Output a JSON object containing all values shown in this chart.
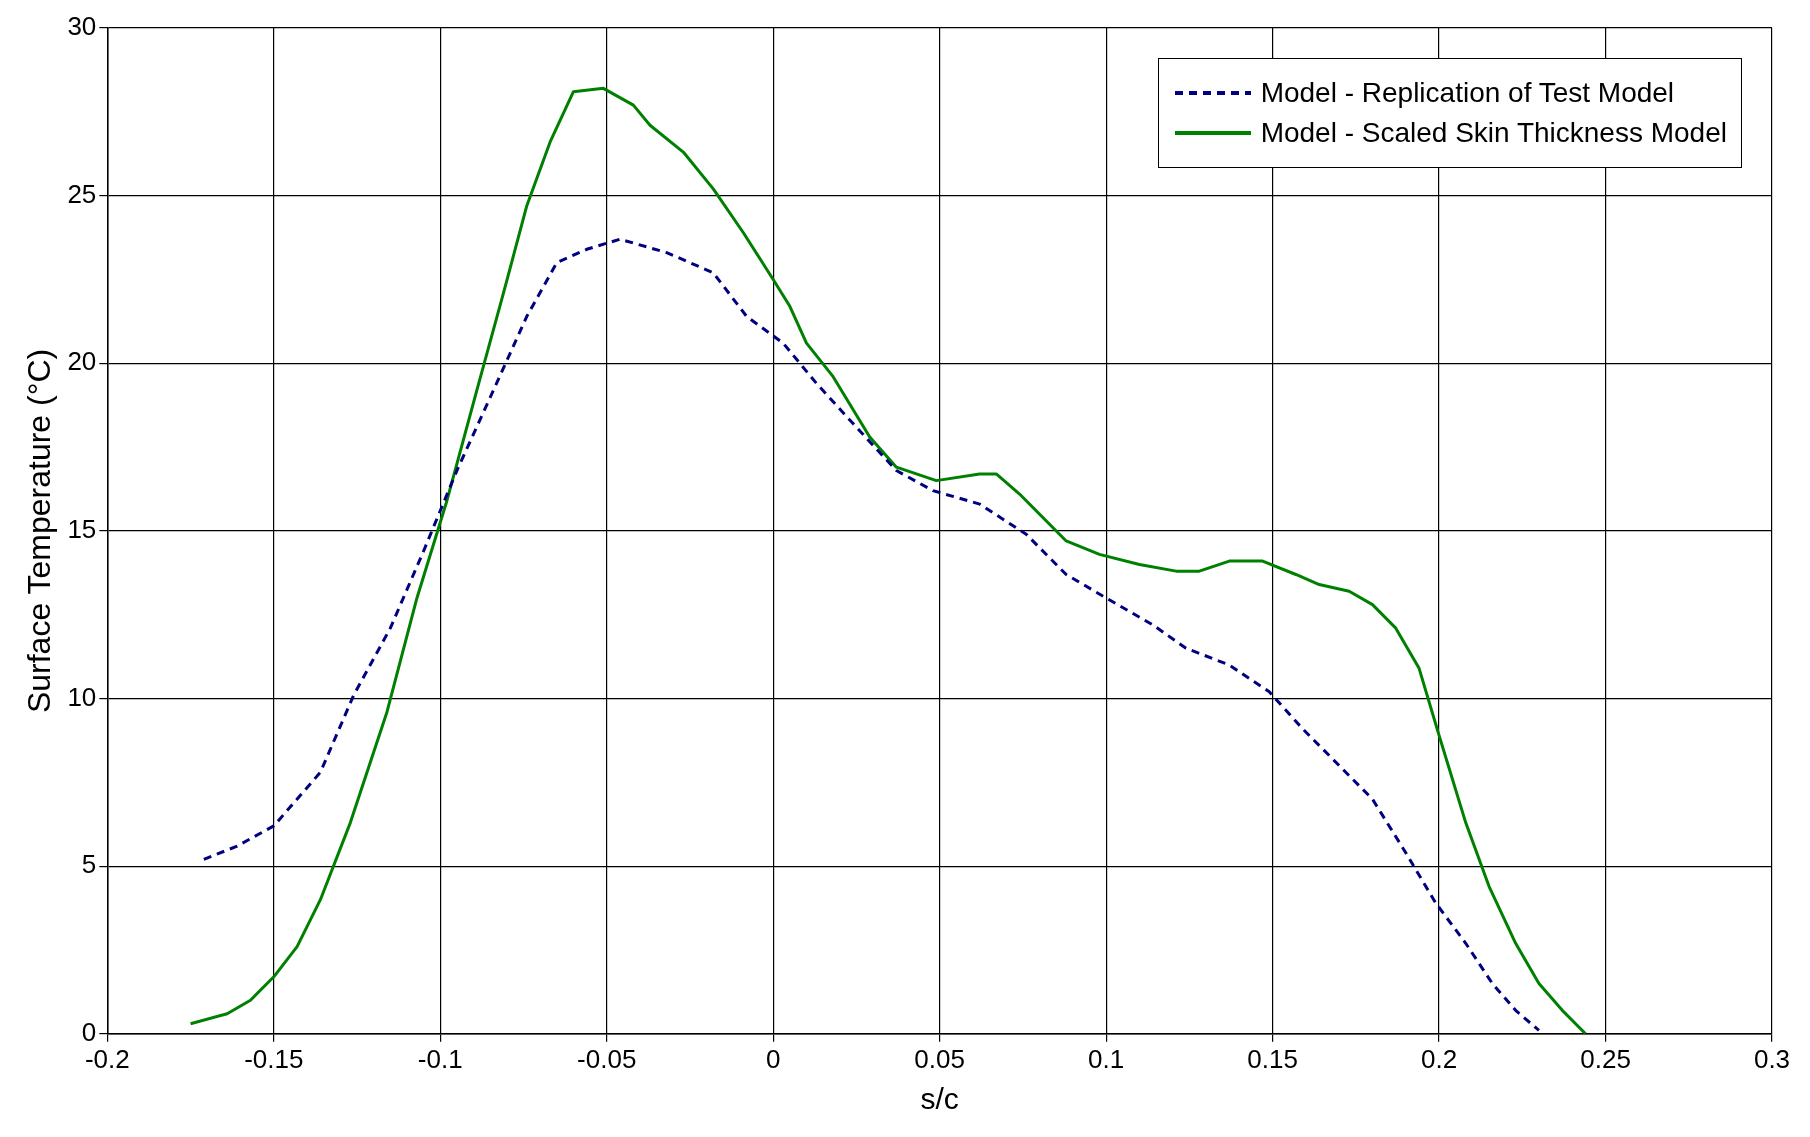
{
  "chart_data": {
    "type": "line",
    "xlabel": "s/c",
    "ylabel": "Surface Temperature (°C)",
    "xlim": [
      -0.2,
      0.3
    ],
    "xticks": [
      -0.2,
      -0.15,
      -0.1,
      -0.05,
      0,
      0.05,
      0.1,
      0.15,
      0.2,
      0.25,
      0.3
    ],
    "ylim": [
      0,
      30
    ],
    "yticks": [
      0,
      5,
      10,
      15,
      20,
      25,
      30
    ],
    "grid": true,
    "legend": "top right",
    "marker": "none",
    "series": [
      {
        "name": "Model - Replication of Test Model",
        "color": "#000080",
        "line_style": "dashed",
        "x": [
          -0.171,
          -0.161,
          -0.15,
          -0.136,
          -0.126,
          -0.115,
          -0.105,
          -0.095,
          -0.084,
          -0.074,
          -0.065,
          -0.056,
          -0.046,
          -0.032,
          -0.018,
          -0.008,
          0.003,
          0.013,
          0.024,
          0.037,
          0.048,
          0.062,
          0.076,
          0.088,
          0.1,
          0.114,
          0.124,
          0.137,
          0.149,
          0.159,
          0.17,
          0.18,
          0.19,
          0.199,
          0.208,
          0.216,
          0.223,
          0.23
        ],
        "values": [
          5.2,
          5.6,
          6.2,
          7.8,
          10.1,
          12.1,
          14.4,
          16.8,
          19.2,
          21.4,
          23.0,
          23.4,
          23.7,
          23.3,
          22.7,
          21.4,
          20.6,
          19.4,
          18.2,
          16.8,
          16.2,
          15.8,
          14.9,
          13.7,
          13.0,
          12.2,
          11.5,
          11.0,
          10.2,
          9.1,
          8.0,
          7.0,
          5.4,
          3.9,
          2.7,
          1.5,
          0.7,
          0.1
        ]
      },
      {
        "name": "Model - Scaled Skin Thickness Model",
        "color": "#008000",
        "line_style": "solid",
        "x": [
          -0.175,
          -0.164,
          -0.157,
          -0.15,
          -0.143,
          -0.136,
          -0.127,
          -0.116,
          -0.107,
          -0.098,
          -0.089,
          -0.081,
          -0.074,
          -0.067,
          -0.06,
          -0.051,
          -0.042,
          -0.037,
          -0.027,
          -0.018,
          -0.009,
          0.0,
          0.005,
          0.01,
          0.018,
          0.029,
          0.037,
          0.049,
          0.062,
          0.067,
          0.074,
          0.088,
          0.098,
          0.11,
          0.121,
          0.128,
          0.137,
          0.147,
          0.157,
          0.164,
          0.173,
          0.18,
          0.187,
          0.194,
          0.2,
          0.208,
          0.215,
          0.223,
          0.23,
          0.237,
          0.244
        ],
        "values": [
          0.3,
          0.6,
          1.0,
          1.7,
          2.6,
          4.0,
          6.3,
          9.6,
          13.0,
          15.9,
          19.2,
          22.1,
          24.7,
          26.6,
          28.1,
          28.2,
          27.7,
          27.1,
          26.3,
          25.2,
          23.9,
          22.5,
          21.7,
          20.6,
          19.6,
          17.8,
          16.9,
          16.5,
          16.7,
          16.7,
          16.1,
          14.7,
          14.3,
          14.0,
          13.8,
          13.8,
          14.1,
          14.1,
          13.7,
          13.4,
          13.2,
          12.8,
          12.1,
          10.9,
          8.9,
          6.3,
          4.4,
          2.7,
          1.5,
          0.7,
          0
        ]
      }
    ]
  }
}
